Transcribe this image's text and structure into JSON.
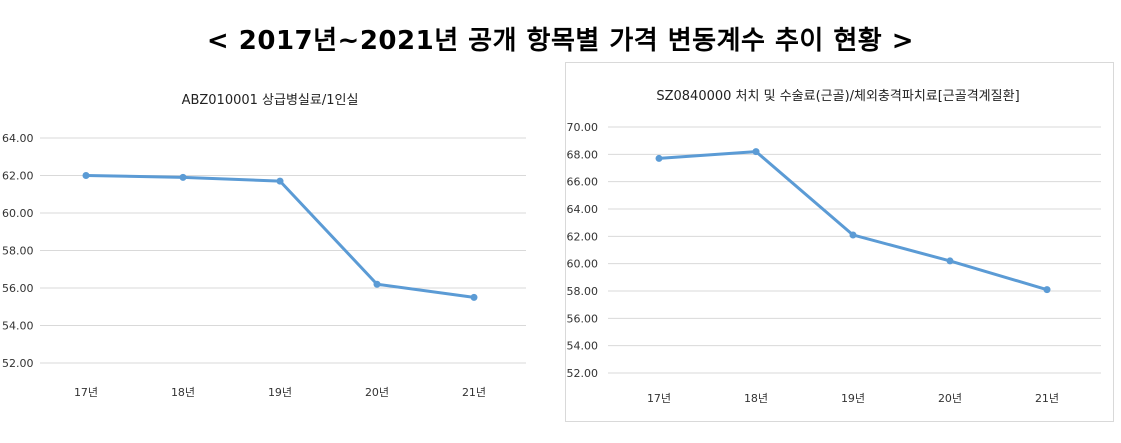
{
  "page": {
    "title": "< 2017년~2021년 공개 항목별 가격 변동계수 추이 현황 >"
  },
  "chart_data": [
    {
      "type": "line",
      "title": "ABZ010001 상급병실료/1인실",
      "categories": [
        "17년",
        "18년",
        "19년",
        "20년",
        "21년"
      ],
      "series": [
        {
          "values": [
            62.0,
            61.9,
            61.7,
            56.2,
            55.5
          ]
        }
      ],
      "yticks": [
        "52.00",
        "54.00",
        "56.00",
        "58.00",
        "60.00",
        "62.00",
        "64.00"
      ],
      "ylim": [
        52,
        64
      ],
      "grid": true,
      "colors": {
        "series": "#5b9bd5",
        "grid": "#d9d9d9"
      }
    },
    {
      "type": "line",
      "title": "SZ0840000 처치 및 수술료(근골)/체외충격파치료[근골격계질환]",
      "categories": [
        "17년",
        "18년",
        "19년",
        "20년",
        "21년"
      ],
      "series": [
        {
          "values": [
            67.7,
            68.2,
            62.1,
            60.2,
            58.1
          ]
        }
      ],
      "yticks": [
        "52.00",
        "54.00",
        "56.00",
        "58.00",
        "60.00",
        "62.00",
        "64.00",
        "66.00",
        "68.00",
        "70.00"
      ],
      "ylim": [
        52,
        70
      ],
      "grid": true,
      "colors": {
        "series": "#5b9bd5",
        "grid": "#d9d9d9"
      }
    }
  ]
}
